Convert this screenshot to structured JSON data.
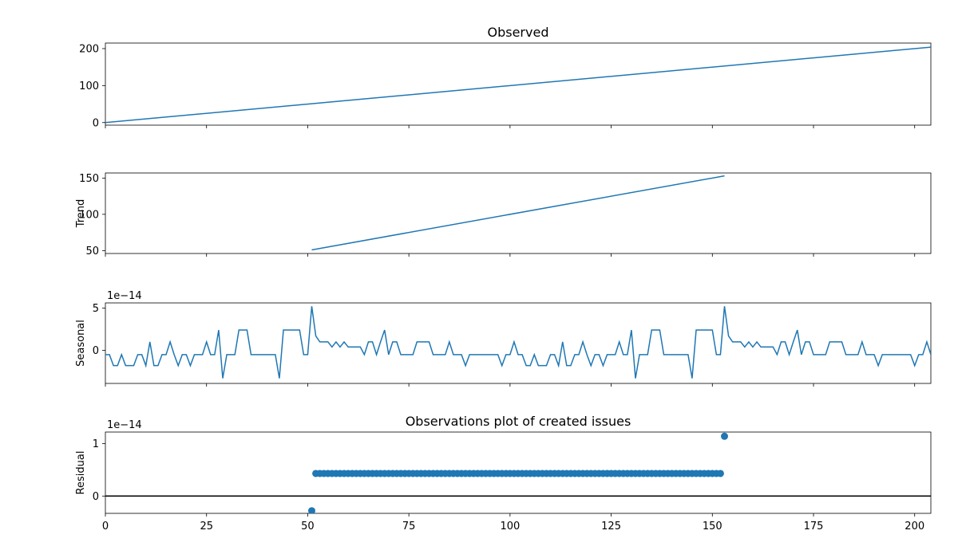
{
  "colors": {
    "series": "#1f77b4",
    "axes": "#000000",
    "background": "#ffffff"
  },
  "chart_data": [
    {
      "type": "line",
      "title": "Observed",
      "ylabel": "",
      "offset_label": "",
      "x_range": [
        0,
        204
      ],
      "ylim": [
        -7,
        215
      ],
      "yticks": [
        0,
        100,
        200
      ],
      "ytick_labels": [
        "0",
        "100",
        "200"
      ],
      "show_xtick_labels": false,
      "series": [
        {
          "line": [
            [
              0,
              0
            ],
            [
              204,
              204
            ]
          ]
        }
      ]
    },
    {
      "type": "line",
      "title": "",
      "ylabel": "Trend",
      "offset_label": "",
      "x_range": [
        0,
        204
      ],
      "ylim": [
        46,
        157
      ],
      "yticks": [
        50,
        100,
        150
      ],
      "ytick_labels": [
        "50",
        "100",
        "150"
      ],
      "show_xtick_labels": false,
      "series": [
        {
          "line": [
            [
              51,
              51
            ],
            [
              153,
              153
            ]
          ]
        }
      ]
    },
    {
      "type": "line",
      "title": "",
      "ylabel": "Seasonal",
      "offset_label": "1e−14",
      "x_range": [
        0,
        204
      ],
      "ylim": [
        -3.9,
        5.6
      ],
      "yticks": [
        0,
        5
      ],
      "ytick_labels": [
        "0",
        "5"
      ],
      "show_xtick_labels": false,
      "series": [
        {
          "period": 102,
          "values": [
            -0.5,
            -0.5,
            -1.8,
            -1.8,
            -0.5,
            -1.8,
            -1.8,
            -1.8,
            -0.5,
            -0.5,
            -1.8,
            1.0,
            -1.8,
            -1.8,
            -0.5,
            -0.5,
            1.0,
            -0.5,
            -1.8,
            -0.5,
            -0.5,
            -1.8,
            -0.5,
            -0.5,
            -0.5,
            1.0,
            -0.5,
            -0.5,
            2.4,
            -3.3,
            -0.5,
            -0.5,
            -0.5,
            2.4,
            2.4,
            2.4,
            -0.5,
            -0.5,
            -0.5,
            -0.5,
            -0.5,
            -0.5,
            -0.5,
            -3.3,
            2.4,
            2.4,
            2.4,
            2.4,
            2.4,
            -0.5,
            -0.5,
            5.2,
            1.7,
            1.0,
            1.0,
            1.0,
            0.4,
            1.0,
            0.4,
            1.0,
            0.4,
            0.4,
            0.4,
            0.4,
            -0.5,
            1.0,
            1.0,
            -0.5,
            1.0,
            2.4,
            -0.5,
            1.0,
            1.0,
            -0.5,
            -0.5,
            -0.5,
            -0.5,
            1.0,
            1.0,
            1.0,
            1.0,
            -0.5,
            -0.5,
            -0.5,
            -0.5,
            1.0,
            -0.5,
            -0.5,
            -0.5,
            -1.8,
            -0.5,
            -0.5,
            -0.5,
            -0.5,
            -0.5,
            -0.5,
            -0.5,
            -0.5,
            -1.8,
            -0.5,
            -0.5,
            1.0
          ]
        }
      ]
    },
    {
      "type": "scatter",
      "title": "Observations plot of created issues",
      "ylabel": "Residual",
      "offset_label": "1e−14",
      "x_range": [
        0,
        204
      ],
      "ylim": [
        -0.33,
        1.22
      ],
      "yticks": [
        0,
        1
      ],
      "ytick_labels": [
        "0",
        "1"
      ],
      "show_xtick_labels": true,
      "xticks": [
        0,
        25,
        50,
        75,
        100,
        125,
        150,
        175,
        200
      ],
      "xtick_labels": [
        "0",
        "25",
        "50",
        "75",
        "100",
        "125",
        "150",
        "175",
        "200"
      ],
      "hline": 0,
      "series": [
        {
          "points": [
            [
              51,
              -0.28
            ],
            [
              153,
              1.14
            ]
          ],
          "flat": {
            "x_from": 52,
            "x_to": 152,
            "y": 0.43
          }
        }
      ]
    }
  ]
}
